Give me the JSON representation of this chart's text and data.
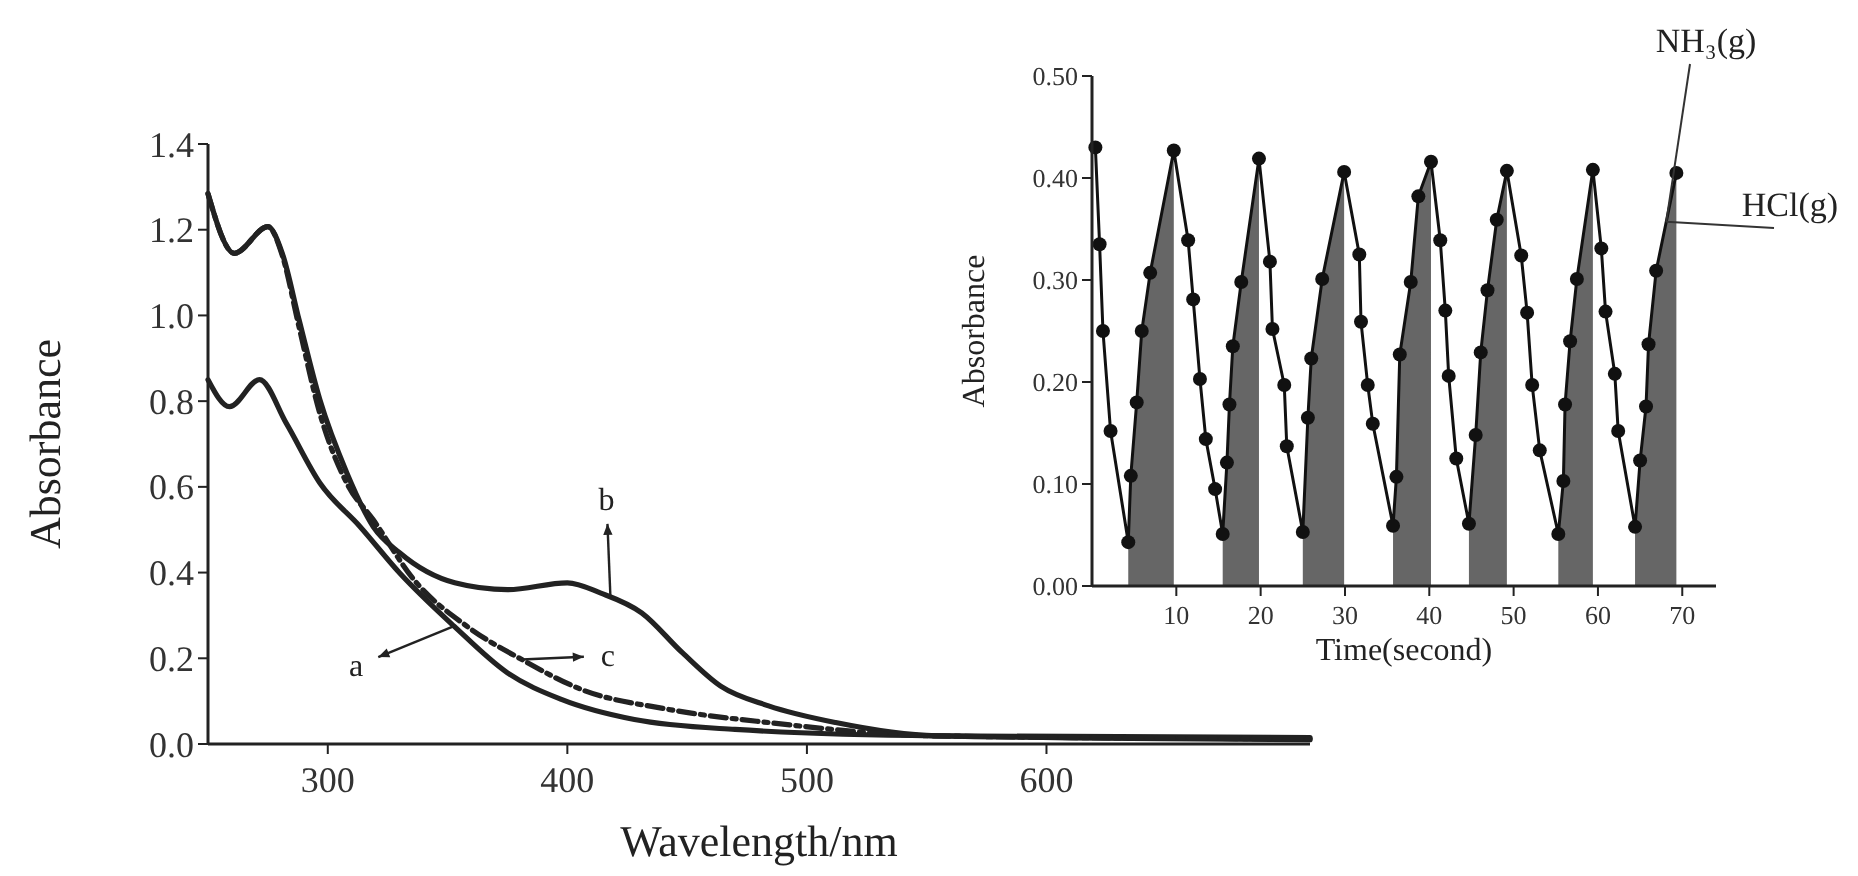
{
  "chart_data": [
    {
      "type": "line",
      "xlabel": "Wavelength/nm",
      "ylabel": "Absorbance",
      "xlim": [
        250,
        710
      ],
      "ylim": [
        0,
        1.4
      ],
      "xticks": [
        300,
        400,
        500,
        600
      ],
      "yticks": [
        {
          "value": 0,
          "label": "0.0"
        },
        0.2,
        0.4,
        0.6,
        0.8,
        {
          "value": 1,
          "label": "1.0"
        },
        1.2,
        1.4
      ],
      "grid": false,
      "legend": false,
      "marker": "none",
      "series": [
        {
          "color": "#222222",
          "line_style": "solid",
          "x": [
            250,
            259,
            271.5,
            282.7,
            296.7,
            313.5,
            330,
            352.7,
            375,
            397.5,
            428,
            470,
            554,
            710
          ],
          "values": [
            0.85,
            0.787,
            0.85,
            0.748,
            0.609,
            0.507,
            0.399,
            0.275,
            0.166,
            0.104,
            0.057,
            0.034,
            0.019,
            0.015
          ]
        },
        {
          "color": "#222222",
          "line_style": "solid",
          "x": [
            250,
            261,
            275,
            281,
            288,
            296.7,
            308,
            319,
            330,
            353,
            375,
            400,
            414,
            431,
            448,
            464,
            484,
            512,
            554,
            710
          ],
          "values": [
            1.284,
            1.145,
            1.207,
            1.145,
            0.99,
            0.803,
            0.632,
            0.507,
            0.446,
            0.376,
            0.36,
            0.376,
            0.352,
            0.306,
            0.213,
            0.135,
            0.089,
            0.05,
            0.019,
            0.01
          ]
        },
        {
          "color": "#222222",
          "line_style": "dashed",
          "x": [
            250,
            261,
            275,
            281,
            288,
            296.7,
            308,
            319,
            336,
            358,
            381,
            406,
            442,
            484,
            554,
            710
          ],
          "values": [
            1.284,
            1.145,
            1.207,
            1.14,
            0.973,
            0.771,
            0.608,
            0.523,
            0.383,
            0.275,
            0.197,
            0.127,
            0.081,
            0.05,
            0.019,
            0.012
          ]
        }
      ],
      "annotations": [
        {
          "text": "a",
          "x": 352.7,
          "y": 0.275
        },
        {
          "text": "b",
          "x": 418,
          "y": 0.341
        },
        {
          "text": "c",
          "x": 381,
          "y": 0.197
        }
      ]
    },
    {
      "type": "line",
      "xlabel": "Time(second)",
      "ylabel": "Absorbance",
      "xlim": [
        0,
        74
      ],
      "ylim": [
        0,
        0.5
      ],
      "xticks": [
        10,
        20,
        30,
        40,
        50,
        60,
        70
      ],
      "yticks": [
        {
          "value": 0,
          "label": "0.00"
        },
        {
          "value": 0.1,
          "label": "0.10"
        },
        {
          "value": 0.2,
          "label": "0.20"
        },
        {
          "value": 0.3,
          "label": "0.30"
        },
        {
          "value": 0.4,
          "label": "0.40"
        },
        {
          "value": 0.5,
          "label": "0.50"
        }
      ],
      "grid": false,
      "legend": false,
      "marker": "circle",
      "x": [
        0.4,
        0.9,
        1.3,
        2.2,
        4.3,
        4.6,
        5.3,
        5.9,
        6.9,
        9.7,
        11.4,
        12.0,
        12.8,
        13.5,
        14.6,
        15.5,
        16.0,
        16.3,
        16.7,
        17.7,
        19.8,
        21.1,
        21.4,
        22.8,
        23.1,
        25.0,
        25.6,
        26.0,
        27.3,
        29.9,
        31.7,
        31.9,
        32.7,
        33.3,
        35.7,
        36.1,
        36.5,
        37.8,
        38.7,
        40.2,
        41.3,
        41.9,
        42.3,
        43.2,
        44.7,
        45.5,
        46.1,
        46.9,
        48.0,
        49.2,
        50.9,
        51.6,
        52.2,
        53.1,
        55.3,
        55.9,
        56.1,
        56.7,
        57.5,
        59.4,
        60.4,
        60.9,
        62.0,
        62.4,
        64.4,
        65.0,
        65.7,
        66.0,
        66.9,
        69.3
      ],
      "series": [
        {
          "name": "NH₃(g)",
          "color": "#111111",
          "values": [
            0.43,
            0.335,
            0.25,
            0.152,
            0.043,
            0.108,
            0.18,
            0.25,
            0.307,
            0.427,
            0.339,
            0.281,
            0.203,
            0.144,
            0.095,
            0.051,
            0.121,
            0.178,
            0.235,
            0.298,
            0.419,
            0.318,
            0.252,
            0.197,
            0.137,
            0.053,
            0.165,
            0.223,
            0.301,
            0.406,
            0.325,
            0.259,
            0.197,
            0.159,
            0.059,
            0.107,
            0.227,
            0.298,
            0.382,
            0.416,
            0.339,
            0.27,
            0.206,
            0.125,
            0.061,
            0.148,
            0.229,
            0.29,
            0.359,
            0.407,
            0.324,
            0.268,
            0.197,
            0.133,
            0.051,
            0.103,
            0.178,
            0.24,
            0.301,
            0.408,
            0.331,
            0.269,
            0.208,
            0.152,
            0.058,
            0.123,
            0.176,
            0.237,
            0.309,
            0.405
          ]
        },
        {
          "name": "HCl(g)",
          "type": "area",
          "marker": "none",
          "color": "#666666",
          "values": [
            null,
            null,
            null,
            null,
            0.043,
            0.108,
            0.18,
            0.25,
            0.307,
            0.427,
            null,
            null,
            null,
            null,
            null,
            0.051,
            0.121,
            0.178,
            0.235,
            0.298,
            0.419,
            null,
            null,
            null,
            null,
            0.053,
            0.165,
            0.223,
            0.301,
            0.406,
            null,
            null,
            null,
            null,
            0.059,
            0.107,
            0.227,
            0.298,
            0.382,
            0.416,
            null,
            null,
            null,
            null,
            0.061,
            0.148,
            0.229,
            0.29,
            0.359,
            0.407,
            null,
            null,
            null,
            null,
            0.051,
            0.103,
            0.178,
            0.24,
            0.301,
            0.408,
            null,
            null,
            null,
            null,
            0.058,
            0.123,
            0.176,
            0.237,
            0.309,
            0.405
          ]
        }
      ]
    }
  ]
}
